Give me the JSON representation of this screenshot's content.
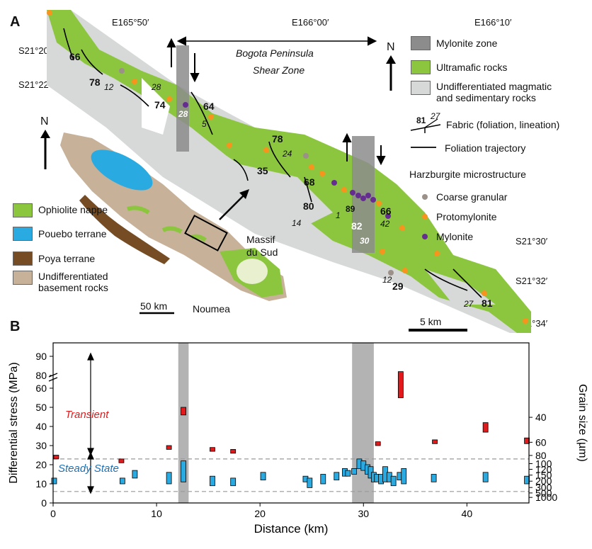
{
  "panel_a": {
    "letter": "A",
    "lon_labels": [
      "E165°50′",
      "E166°00′",
      "E166°10′"
    ],
    "lat_labels_left": [
      "S21°20′",
      "S21°22′"
    ],
    "lat_labels_right": [
      "S21°30′",
      "S21°32′",
      "S21°34′"
    ],
    "shear_zone_label": [
      "Bogota Peninsula",
      "Shear Zone"
    ],
    "north_label": "N",
    "legend": [
      {
        "label": "Mylonite zone",
        "color": "#8c8c8c"
      },
      {
        "label": "Ultramafic rocks",
        "color": "#8cc63f"
      },
      {
        "label": "Undifferentiated magmatic and sedimentary rocks",
        "color": "#d7d8d8"
      }
    ],
    "legend_lines": [
      "Undifferentiated magmatic",
      "and sedimentary rocks"
    ],
    "fabric": {
      "dip": "81",
      "plunge": "27",
      "label": "Fabric (foliation, lineation)"
    },
    "trajectory_label": "Foliation trajectory",
    "microstructure_title": "Harzburgite microstructure",
    "microstructure": [
      {
        "label": "Coarse granular",
        "color": "#9b9189"
      },
      {
        "label": "Protomylonite",
        "color": "#f7941d"
      },
      {
        "label": "Mylonite",
        "color": "#662d91"
      }
    ],
    "scale_map": "5 km",
    "inset": {
      "north_label": "N",
      "legend": [
        {
          "label": "Ophiolite nappe",
          "color": "#8cc63f"
        },
        {
          "label": "Pouebo terrane",
          "color": "#29abe2"
        },
        {
          "label": "Poya terrane",
          "color": "#754c24"
        },
        {
          "label": "Undifferentiated basement rocks",
          "color": "#c7b299"
        }
      ],
      "basement_lines": [
        "Undifferentiated",
        "basement rocks"
      ],
      "massif": [
        "Massif",
        "du Sud"
      ],
      "city": "Noumea",
      "scale": "50 km"
    },
    "strikes_bold": [
      "66",
      "78",
      "74",
      "64",
      "35",
      "78",
      "68",
      "80",
      "89",
      "66",
      "82",
      "29",
      "81"
    ],
    "strikes_italic": [
      "12",
      "28",
      "28",
      "5",
      "24",
      "14",
      "1",
      "42",
      "30",
      "12",
      "27"
    ]
  },
  "panel_b": {
    "letter": "B",
    "chart_data": {
      "type": "bar",
      "xlabel": "Distance (km)",
      "ylabel": "Differential stress (MPa)",
      "y2label": "Grain size (µm)",
      "xlim": [
        0,
        46
      ],
      "x_ticks": [
        "0",
        "10",
        "20",
        "30",
        "40"
      ],
      "y_ticks": [
        "0",
        "10",
        "20",
        "30",
        "40",
        "50",
        "60",
        "80",
        "90"
      ],
      "y_axis_break": "between 60 and 80",
      "y2_ticks": [
        "40",
        "60",
        "80",
        "100",
        "120",
        "150",
        "200",
        "300",
        "500",
        "1000"
      ],
      "mylonite_zones_km": [
        [
          12.1,
          13.1
        ],
        [
          28.9,
          31.0
        ]
      ],
      "reference_lines_mpa": [
        23,
        6
      ],
      "annotations": [
        "Transient",
        "Steady State"
      ],
      "series": [
        {
          "name": "Transient",
          "color": "#e31a1c",
          "points": [
            {
              "x": 0.3,
              "low": 23,
              "high": 25
            },
            {
              "x": 6.6,
              "low": 21,
              "high": 23
            },
            {
              "x": 11.2,
              "low": 28,
              "high": 30
            },
            {
              "x": 12.6,
              "low": 46,
              "high": 50
            },
            {
              "x": 15.4,
              "low": 27,
              "high": 29
            },
            {
              "x": 17.4,
              "low": 26,
              "high": 28
            },
            {
              "x": 31.4,
              "low": 30,
              "high": 32
            },
            {
              "x": 33.6,
              "low": 55,
              "high": 82
            },
            {
              "x": 36.9,
              "low": 31,
              "high": 33
            },
            {
              "x": 41.8,
              "low": 37,
              "high": 42
            },
            {
              "x": 45.8,
              "low": 31,
              "high": 34
            }
          ]
        },
        {
          "name": "Steady State",
          "color": "#29abe2",
          "points": [
            {
              "x": 0.1,
              "low": 10,
              "high": 13
            },
            {
              "x": 6.7,
              "low": 10,
              "high": 13
            },
            {
              "x": 7.9,
              "low": 13,
              "high": 17
            },
            {
              "x": 11.2,
              "low": 10,
              "high": 16
            },
            {
              "x": 12.6,
              "low": 11,
              "high": 22
            },
            {
              "x": 15.4,
              "low": 9,
              "high": 14
            },
            {
              "x": 17.4,
              "low": 9,
              "high": 13
            },
            {
              "x": 20.3,
              "low": 12,
              "high": 16
            },
            {
              "x": 24.4,
              "low": 11,
              "high": 14
            },
            {
              "x": 24.8,
              "low": 8,
              "high": 13
            },
            {
              "x": 26.1,
              "low": 10,
              "high": 15
            },
            {
              "x": 27.4,
              "low": 12,
              "high": 16
            },
            {
              "x": 28.2,
              "low": 14,
              "high": 18
            },
            {
              "x": 28.5,
              "low": 14,
              "high": 17
            },
            {
              "x": 29.1,
              "low": 15,
              "high": 18
            },
            {
              "x": 29.6,
              "low": 18,
              "high": 23
            },
            {
              "x": 30.0,
              "low": 17,
              "high": 22
            },
            {
              "x": 30.4,
              "low": 15,
              "high": 20
            },
            {
              "x": 30.7,
              "low": 13,
              "high": 19
            },
            {
              "x": 31.0,
              "low": 11,
              "high": 16
            },
            {
              "x": 31.3,
              "low": 11,
              "high": 15
            },
            {
              "x": 31.7,
              "low": 10,
              "high": 15
            },
            {
              "x": 32.1,
              "low": 11,
              "high": 19
            },
            {
              "x": 32.5,
              "low": 11,
              "high": 16
            },
            {
              "x": 32.9,
              "low": 9,
              "high": 14
            },
            {
              "x": 33.5,
              "low": 12,
              "high": 16
            },
            {
              "x": 33.9,
              "low": 10,
              "high": 18
            },
            {
              "x": 36.8,
              "low": 11,
              "high": 15
            },
            {
              "x": 41.8,
              "low": 11,
              "high": 16
            },
            {
              "x": 45.8,
              "low": 10,
              "high": 14
            }
          ]
        }
      ]
    }
  }
}
